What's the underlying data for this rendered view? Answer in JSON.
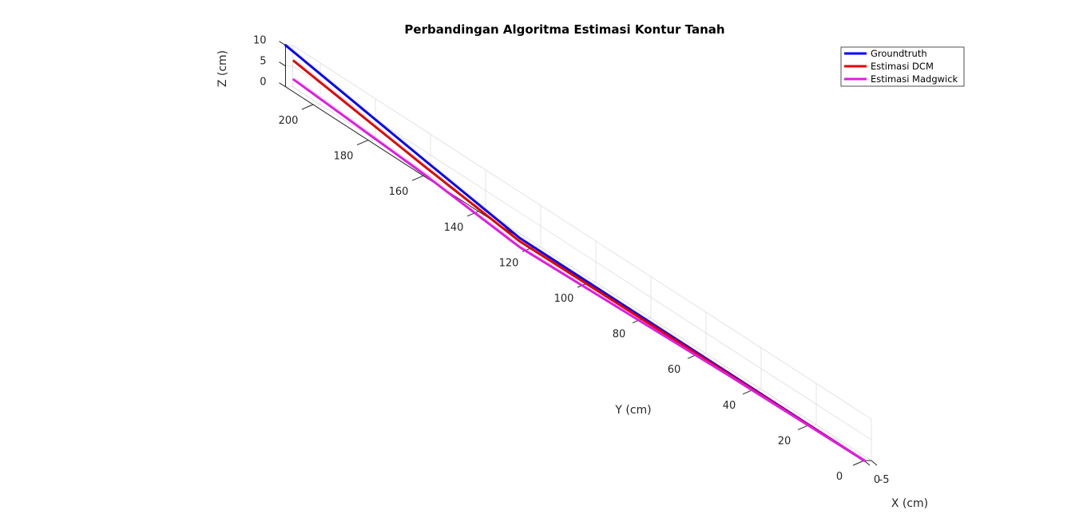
{
  "chart_data": {
    "type": "line",
    "title": "Perbandingan Algoritma Estimasi Kontur Tanah",
    "xlabel": "X (cm)",
    "ylabel": "Y (cm)",
    "zlabel": "Z (cm)",
    "xlim": [
      -5,
      0
    ],
    "ylim": [
      0,
      210
    ],
    "zlim": [
      0,
      10
    ],
    "xticks": [
      "-5",
      "0"
    ],
    "yticks": [
      "0",
      "20",
      "40",
      "60",
      "80",
      "100",
      "120",
      "140",
      "160",
      "180",
      "200"
    ],
    "zticks": [
      "0",
      "5",
      "10"
    ],
    "grid": true,
    "legend_position": "top-right",
    "series": [
      {
        "name": "Groundtruth",
        "color": "#0000ff",
        "points": [
          [
            0,
            0,
            0
          ],
          [
            0,
            50,
            0
          ],
          [
            0,
            125,
            0
          ],
          [
            0,
            160,
            4
          ],
          [
            0,
            210,
            10
          ]
        ]
      },
      {
        "name": "Estimasi DCM",
        "color": "#e50000",
        "points": [
          [
            0,
            0,
            0
          ],
          [
            0,
            50,
            -0.3
          ],
          [
            0,
            125,
            -0.8
          ],
          [
            0,
            160,
            2.5
          ],
          [
            0,
            207,
            7.5
          ]
        ]
      },
      {
        "name": "Estimasi Madgwick",
        "color": "#e619e6",
        "points": [
          [
            0,
            0,
            0
          ],
          [
            0,
            50,
            -0.6
          ],
          [
            0,
            125,
            -2.2
          ],
          [
            0,
            160,
            0.5
          ],
          [
            0,
            207,
            3
          ]
        ]
      }
    ]
  }
}
